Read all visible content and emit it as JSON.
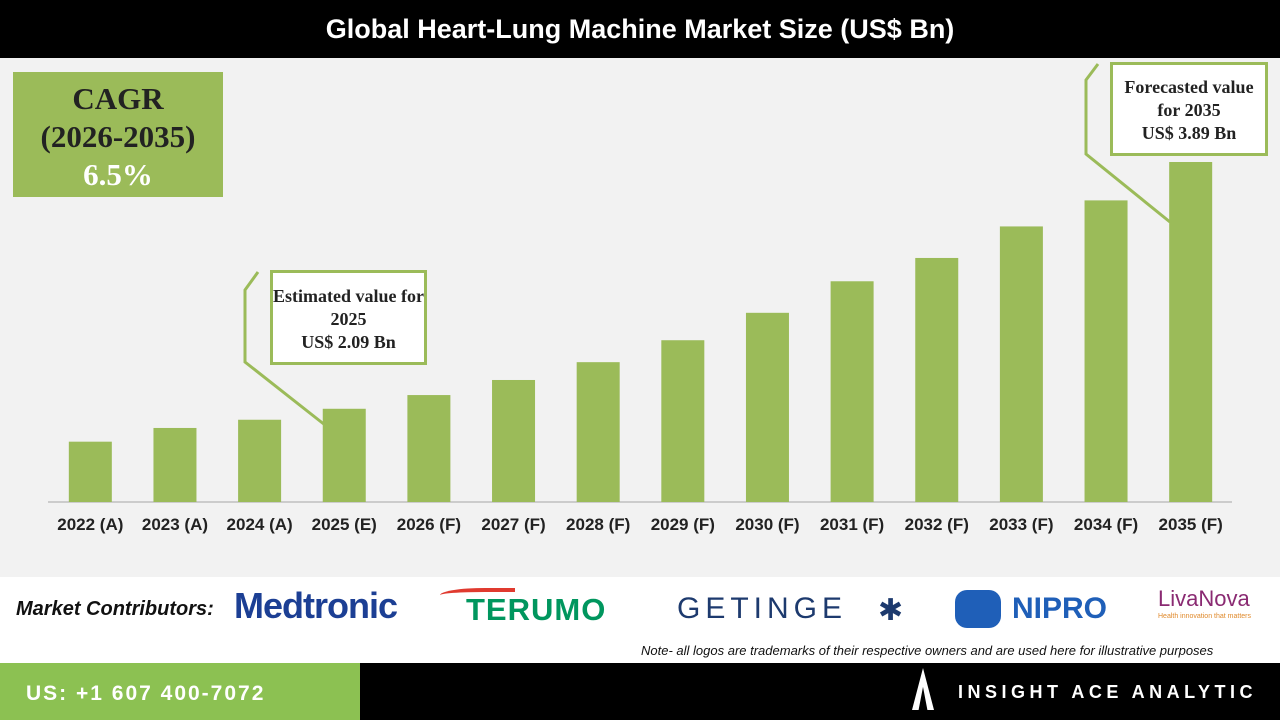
{
  "chart_data": {
    "type": "bar",
    "title": "Global Heart-Lung Machine Market Size (US$ Bn)",
    "categories": [
      "2022 (A)",
      "2023 (A)",
      "2024 (A)",
      "2025 (E)",
      "2026 (F)",
      "2027 (F)",
      "2028 (F)",
      "2029 (F)",
      "2030 (F)",
      "2031 (F)",
      "2032 (F)",
      "2033 (F)",
      "2034 (F)",
      "2035 (F)"
    ],
    "values": [
      1.85,
      1.95,
      2.01,
      2.09,
      2.19,
      2.3,
      2.43,
      2.59,
      2.79,
      3.02,
      3.19,
      3.42,
      3.61,
      3.89
    ],
    "color": "#9bbb59",
    "ylim": [
      1.41,
      3.89
    ],
    "annotations": [
      {
        "text": "Estimated value for 2025",
        "value_label": "US$ 2.09 Bn"
      },
      {
        "text": "Forecasted value for 2035",
        "value_label": "US$ 3.89 Bn"
      }
    ],
    "cagr": {
      "label": "CAGR",
      "period": "(2026-2035)",
      "value": "6.5%"
    }
  },
  "contributors": {
    "label": "Market Contributors:",
    "logos": [
      "Medtronic",
      "TERUMO",
      "GETINGE",
      "NIPRO",
      "LivaNova"
    ],
    "livanova_tagline": "Health innovation that matters"
  },
  "note": "Note- all logos are trademarks of their respective owners and are used here for illustrative purposes",
  "footer": {
    "phone": "US: +1 607 400-7072",
    "brand": "INSIGHT ACE ANALYTIC"
  }
}
